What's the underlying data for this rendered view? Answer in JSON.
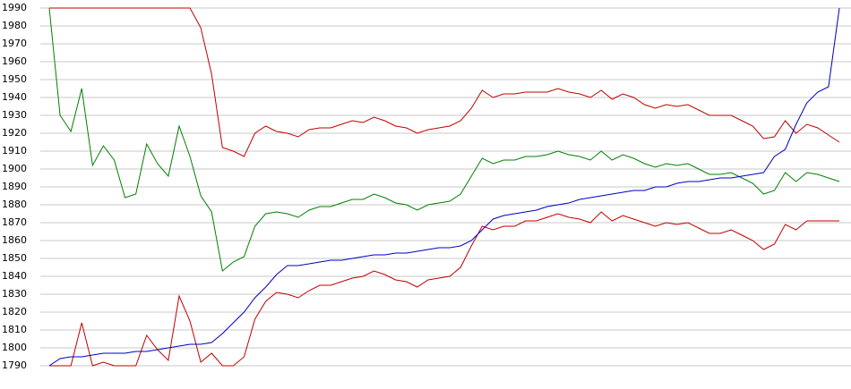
{
  "chart_data": {
    "type": "line",
    "ylim": [
      1790,
      1990
    ],
    "yticks": [
      1790,
      1800,
      1810,
      1820,
      1830,
      1840,
      1850,
      1860,
      1870,
      1880,
      1890,
      1900,
      1910,
      1920,
      1930,
      1940,
      1950,
      1960,
      1970,
      1980,
      1990
    ],
    "grid": true,
    "series": [
      {
        "color": "#008000",
        "values": [
          1990,
          1930,
          1921,
          1945,
          1902,
          1913,
          1905,
          1884,
          1886,
          1914,
          1903,
          1896,
          1924,
          1907,
          1885,
          1876,
          1843,
          1848,
          1851,
          1868,
          1875,
          1876,
          1875,
          1873,
          1877,
          1879,
          1879,
          1881,
          1883,
          1883,
          1886,
          1884,
          1881,
          1880,
          1877,
          1880,
          1881,
          1882,
          1886,
          1896,
          1906,
          1903,
          1905,
          1905,
          1907,
          1907,
          1908,
          1910,
          1908,
          1907,
          1905,
          1910,
          1905,
          1908,
          1906,
          1903,
          1901,
          1903,
          1902,
          1903,
          1900,
          1897,
          1897,
          1898,
          1895,
          1892,
          1886,
          1888,
          1898,
          1893,
          1898,
          1897,
          1895,
          1893
        ]
      },
      {
        "color": "#c00000",
        "values": [
          1990,
          1990,
          1990,
          1990,
          1990,
          1990,
          1990,
          1990,
          1990,
          1990,
          1990,
          1990,
          1990,
          1990,
          1979,
          1953,
          1912,
          1910,
          1907,
          1920,
          1924,
          1921,
          1920,
          1918,
          1922,
          1923,
          1923,
          1925,
          1927,
          1926,
          1929,
          1927,
          1924,
          1923,
          1920,
          1922,
          1923,
          1924,
          1927,
          1934,
          1944,
          1940,
          1942,
          1942,
          1943,
          1943,
          1943,
          1945,
          1943,
          1942,
          1940,
          1944,
          1939,
          1942,
          1940,
          1936,
          1934,
          1936,
          1935,
          1936,
          1933,
          1930,
          1930,
          1930,
          1927,
          1924,
          1917,
          1918,
          1927,
          1920,
          1925,
          1923,
          1919,
          1915
        ]
      },
      {
        "color": "#c00000",
        "values": [
          1790,
          1790,
          1790,
          1814,
          1790,
          1792,
          1790,
          1790,
          1790,
          1807,
          1799,
          1793,
          1829,
          1815,
          1792,
          1797,
          1790,
          1790,
          1795,
          1816,
          1826,
          1831,
          1830,
          1828,
          1832,
          1835,
          1835,
          1837,
          1839,
          1840,
          1843,
          1841,
          1838,
          1837,
          1834,
          1838,
          1839,
          1840,
          1845,
          1857,
          1868,
          1866,
          1868,
          1868,
          1871,
          1871,
          1873,
          1875,
          1873,
          1872,
          1870,
          1876,
          1871,
          1874,
          1872,
          1870,
          1868,
          1870,
          1869,
          1870,
          1867,
          1864,
          1864,
          1866,
          1863,
          1860,
          1855,
          1858,
          1869,
          1866,
          1871,
          1871,
          1871,
          1871
        ]
      },
      {
        "color": "#0000c0",
        "values": [
          1790,
          1794,
          1795,
          1795,
          1796,
          1797,
          1797,
          1797,
          1798,
          1798,
          1799,
          1800,
          1801,
          1802,
          1802,
          1803,
          1808,
          1814,
          1820,
          1828,
          1834,
          1841,
          1846,
          1846,
          1847,
          1848,
          1849,
          1849,
          1850,
          1851,
          1852,
          1852,
          1853,
          1853,
          1854,
          1855,
          1856,
          1856,
          1857,
          1860,
          1866,
          1872,
          1874,
          1875,
          1876,
          1877,
          1879,
          1880,
          1881,
          1883,
          1884,
          1885,
          1886,
          1887,
          1888,
          1888,
          1890,
          1890,
          1892,
          1893,
          1893,
          1894,
          1895,
          1895,
          1896,
          1897,
          1898,
          1907,
          1911,
          1925,
          1937,
          1943,
          1946,
          1990
        ]
      }
    ]
  }
}
